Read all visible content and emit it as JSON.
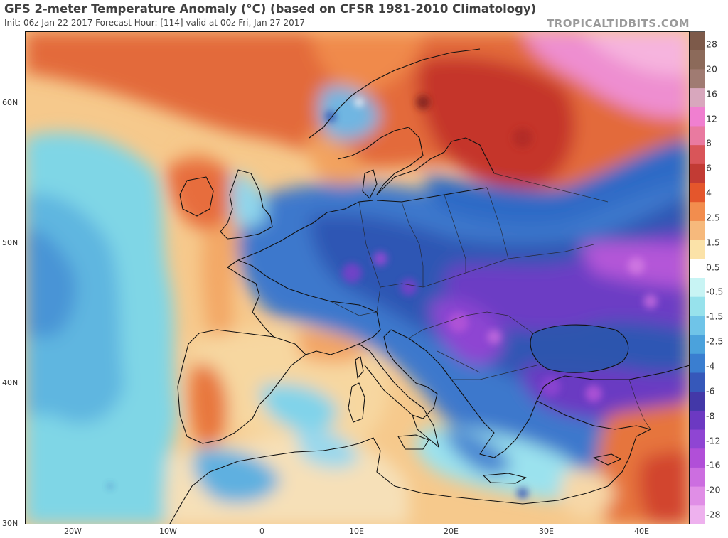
{
  "header": {
    "title": "GFS 2-meter Temperature Anomaly (°C) (based on CFSR 1981-2010 Climatology)",
    "subtitle": "Init: 06z Jan 22 2017   Forecast Hour: [114]   valid at 00z Fri, Jan 27 2017",
    "credit": "TROPICALTIDBITS.COM"
  },
  "map": {
    "lon_range": [
      -25,
      45
    ],
    "lat_range": [
      30,
      65
    ],
    "lat_ticks": [
      {
        "value": 60,
        "label": "60N"
      },
      {
        "value": 50,
        "label": "50N"
      },
      {
        "value": 40,
        "label": "40N"
      },
      {
        "value": 30,
        "label": "30N"
      }
    ],
    "lon_ticks": [
      {
        "value": -20,
        "label": "20W"
      },
      {
        "value": -10,
        "label": "10W"
      },
      {
        "value": 0,
        "label": "0"
      },
      {
        "value": 10,
        "label": "10E"
      },
      {
        "value": 20,
        "label": "20E"
      },
      {
        "value": 30,
        "label": "30E"
      },
      {
        "value": 40,
        "label": "40E"
      }
    ]
  },
  "colorbar": {
    "labels": [
      "28",
      "20",
      "16",
      "12",
      "8",
      "6",
      "4",
      "2.5",
      "1.5",
      "0.5",
      "-0.5",
      "-1.5",
      "-2.5",
      "-4",
      "-6",
      "-8",
      "-12",
      "-16",
      "-20",
      "-28"
    ],
    "colors": [
      "#7d5a4a",
      "#8c6a5a",
      "#a07b72",
      "#d8a7bd",
      "#f07fd0",
      "#e97aa0",
      "#d95559",
      "#c23b34",
      "#e4562c",
      "#f28d4e",
      "#f6b97c",
      "#fbe2a8",
      "#ffffff",
      "#c8f4f4",
      "#97e2ec",
      "#6fc4e8",
      "#4ba2dc",
      "#3a7ed0",
      "#3658ba",
      "#4338a8",
      "#6c39c2",
      "#8f45d3",
      "#b14fd8",
      "#cc6ee0",
      "#e08ee6",
      "#eeb1ee"
    ]
  }
}
